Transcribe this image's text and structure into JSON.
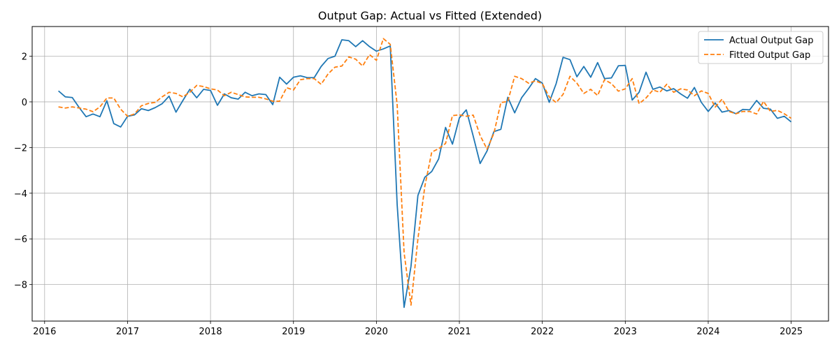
{
  "chart_data": {
    "type": "line",
    "title": "Output Gap: Actual vs Fitted (Extended)",
    "xlabel": "",
    "ylabel": "",
    "xlim": [
      2015.85,
      2025.45
    ],
    "ylim": [
      -9.6,
      3.3
    ],
    "x_ticks": [
      2016,
      2017,
      2018,
      2019,
      2020,
      2021,
      2022,
      2023,
      2024,
      2025
    ],
    "x_tick_labels": [
      "2016",
      "2017",
      "2018",
      "2019",
      "2020",
      "2021",
      "2022",
      "2023",
      "2024",
      "2025"
    ],
    "y_ticks": [
      -8,
      -6,
      -4,
      -2,
      0,
      2
    ],
    "y_tick_labels": [
      "−8",
      "−6",
      "−4",
      "−2",
      "0",
      "2"
    ],
    "grid": true,
    "legend_position": "top-right",
    "x_start": 2016.167,
    "x_step": 0.08333,
    "series": [
      {
        "name": "Actual Output Gap",
        "color": "#1f77b4",
        "style": "solid",
        "values": [
          0.48,
          0.22,
          0.19,
          -0.25,
          -0.65,
          -0.53,
          -0.65,
          0.05,
          -0.95,
          -1.1,
          -0.63,
          -0.57,
          -0.3,
          -0.38,
          -0.25,
          -0.08,
          0.25,
          -0.45,
          0.06,
          0.55,
          0.18,
          0.55,
          0.5,
          -0.15,
          0.35,
          0.18,
          0.12,
          0.42,
          0.27,
          0.35,
          0.32,
          -0.12,
          1.08,
          0.78,
          1.08,
          1.14,
          1.06,
          1.06,
          1.55,
          1.9,
          2.0,
          2.72,
          2.68,
          2.42,
          2.68,
          2.42,
          2.22,
          2.32,
          2.45,
          -4.5,
          -9.0,
          -7.2,
          -4.1,
          -3.3,
          -3.05,
          -2.5,
          -1.12,
          -1.85,
          -0.7,
          -0.35,
          -1.5,
          -2.7,
          -2.15,
          -1.3,
          -1.2,
          0.2,
          -0.48,
          0.18,
          0.58,
          1.02,
          0.82,
          -0.02,
          0.8,
          1.95,
          1.85,
          1.1,
          1.55,
          1.08,
          1.72,
          1.02,
          1.05,
          1.58,
          1.6,
          0.08,
          0.42,
          1.3,
          0.55,
          0.65,
          0.48,
          0.58,
          0.35,
          0.16,
          0.63,
          -0.02,
          -0.42,
          -0.05,
          -0.45,
          -0.38,
          -0.52,
          -0.33,
          -0.35,
          0.06,
          -0.28,
          -0.32,
          -0.72,
          -0.63,
          -0.88
        ]
      },
      {
        "name": "Fitted Output Gap",
        "color": "#ff7f0e",
        "style": "dashed",
        "values": [
          -0.22,
          -0.27,
          -0.22,
          -0.27,
          -0.32,
          -0.43,
          -0.22,
          0.17,
          0.17,
          -0.32,
          -0.63,
          -0.53,
          -0.17,
          -0.07,
          -0.02,
          0.22,
          0.42,
          0.37,
          0.22,
          0.42,
          0.72,
          0.67,
          0.57,
          0.52,
          0.27,
          0.42,
          0.32,
          0.22,
          0.2,
          0.2,
          0.13,
          0.03,
          0.03,
          0.62,
          0.52,
          0.97,
          1.02,
          1.02,
          0.77,
          1.22,
          1.52,
          1.57,
          1.97,
          1.87,
          1.57,
          2.07,
          1.82,
          2.77,
          2.52,
          -0.13,
          -6.6,
          -8.9,
          -6.0,
          -3.7,
          -2.2,
          -2.05,
          -1.82,
          -0.6,
          -0.57,
          -0.63,
          -0.58,
          -1.47,
          -2.07,
          -1.37,
          -0.03,
          0.02,
          1.12,
          1.02,
          0.82,
          0.92,
          0.8,
          0.22,
          -0.03,
          0.33,
          1.12,
          0.82,
          0.37,
          0.55,
          0.28,
          0.97,
          0.8,
          0.47,
          0.57,
          1.02,
          -0.08,
          0.17,
          0.52,
          0.42,
          0.77,
          0.42,
          0.57,
          0.52,
          0.27,
          0.48,
          0.37,
          -0.23,
          0.12,
          -0.42,
          -0.52,
          -0.42,
          -0.42,
          -0.53,
          0.02,
          -0.42,
          -0.37,
          -0.52,
          -0.72
        ]
      }
    ]
  }
}
